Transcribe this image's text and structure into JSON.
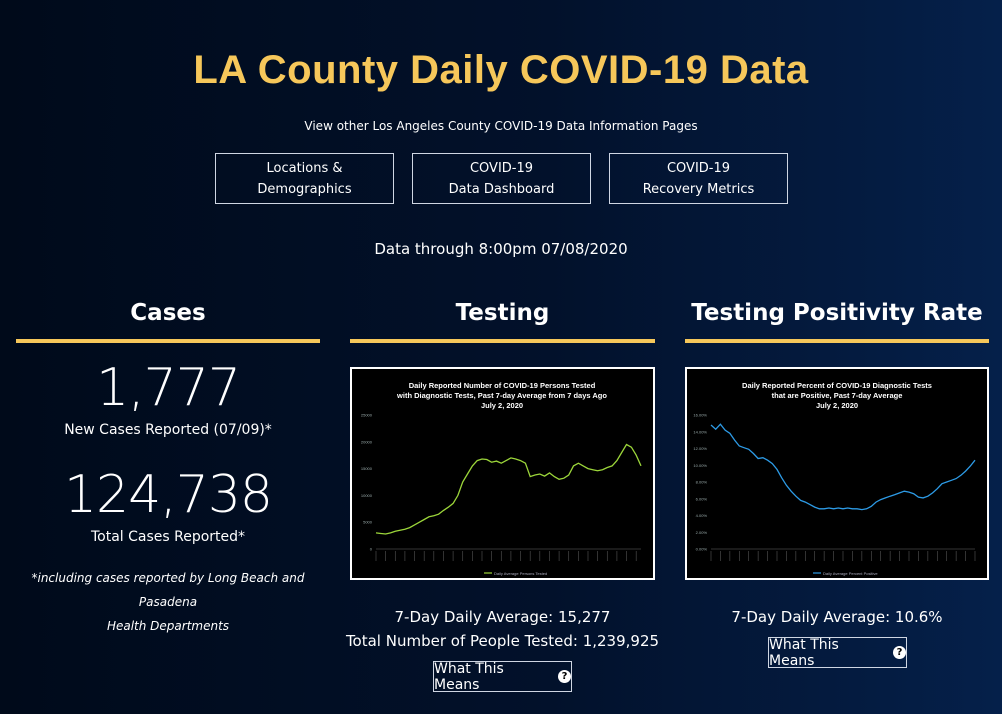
{
  "header": {
    "title": "LA County Daily COVID-19 Data",
    "subtitle": "View other Los Angeles County COVID-19 Data Information Pages"
  },
  "nav": [
    {
      "line1": "Locations &",
      "line2": "Demographics"
    },
    {
      "line1": "COVID-19",
      "line2": "Data Dashboard"
    },
    {
      "line1": "COVID-19",
      "line2": "Recovery Metrics"
    }
  ],
  "data_through": "Data through 8:00pm 07/08/2020",
  "cases": {
    "heading": "Cases",
    "new_cases": "1,777",
    "new_cases_label": "New Cases Reported (07/09)*",
    "total_cases": "124,738",
    "total_cases_label": "Total Cases Reported*",
    "footnote_line1": "*including cases reported by Long Beach and Pasadena",
    "footnote_line2": "Health Departments"
  },
  "testing": {
    "heading": "Testing",
    "chart_title_line1": "Daily Reported Number of COVID-19 Persons Tested",
    "chart_title_line2": "with Diagnostic Tests, Past 7-day Average from 7 days Ago",
    "chart_title_line3": "July 2, 2020",
    "legend": "Daily Average Persons Tested",
    "avg_label": "7-Day Daily Average: 15,277",
    "total_label": "Total Number of People Tested: 1,239,925",
    "button_label": "What This Means",
    "line_color": "#9cd63a"
  },
  "positivity": {
    "heading": "Testing Positivity Rate",
    "chart_title_line1": "Daily Reported Percent of COVID-19 Diagnostic Tests",
    "chart_title_line2": "that are Positive, Past 7-day Average",
    "chart_title_line3": "July 2, 2020",
    "legend": "Daily Average Percent Positive",
    "avg_label": "7-Day Daily Average: 10.6%",
    "button_label": "What This Means",
    "line_color": "#2d9be6"
  },
  "colors": {
    "accent": "#f6c75a",
    "background_dark": "#000a1a",
    "background_light": "#05204a"
  },
  "icons": {
    "help": "question-circle-icon"
  },
  "chart_data": [
    {
      "type": "line",
      "title": "Daily Reported Number of COVID-19 Persons Tested with Diagnostic Tests, Past 7-day Average from 7 days Ago July 2, 2020",
      "ylim": [
        0,
        25000
      ],
      "yticks": [
        "0",
        "5000",
        "10000",
        "15000",
        "20000",
        "25000"
      ],
      "series": [
        {
          "name": "Daily Average Persons Tested",
          "values": [
            3000,
            2900,
            2800,
            3000,
            3300,
            3500,
            3700,
            4000,
            4500,
            5000,
            5500,
            6000,
            6200,
            6500,
            7200,
            7800,
            8500,
            10000,
            12500,
            14000,
            15500,
            16500,
            16800,
            16700,
            16200,
            16400,
            16000,
            16500,
            17000,
            16800,
            16500,
            16000,
            13500,
            13800,
            14000,
            13600,
            14200,
            13500,
            13000,
            13200,
            13800,
            15500,
            16000,
            15500,
            15000,
            14800,
            14600,
            14800,
            15200,
            15500,
            16500,
            18000,
            19500,
            19000,
            17500,
            15500
          ]
        }
      ]
    },
    {
      "type": "line",
      "title": "Daily Reported Percent of COVID-19 Diagnostic Tests that are Positive, Past 7-day Average July 2, 2020",
      "ylim": [
        0,
        16
      ],
      "yticks": [
        "0.00%",
        "2.00%",
        "4.00%",
        "6.00%",
        "8.00%",
        "10.00%",
        "12.00%",
        "14.00%",
        "16.00%"
      ],
      "series": [
        {
          "name": "Daily Average Percent Positive",
          "values": [
            14.8,
            14.3,
            14.9,
            14.2,
            13.8,
            13.0,
            12.3,
            12.1,
            11.9,
            11.4,
            10.8,
            10.9,
            10.6,
            10.2,
            9.5,
            8.5,
            7.6,
            6.9,
            6.3,
            5.8,
            5.6,
            5.3,
            5.0,
            4.8,
            4.8,
            4.9,
            4.8,
            4.9,
            4.8,
            4.9,
            4.8,
            4.8,
            4.7,
            4.8,
            5.1,
            5.6,
            5.9,
            6.1,
            6.3,
            6.5,
            6.7,
            6.9,
            6.8,
            6.6,
            6.2,
            6.1,
            6.3,
            6.7,
            7.2,
            7.8,
            8.0,
            8.2,
            8.4,
            8.8,
            9.3,
            9.9,
            10.6
          ]
        }
      ]
    }
  ]
}
